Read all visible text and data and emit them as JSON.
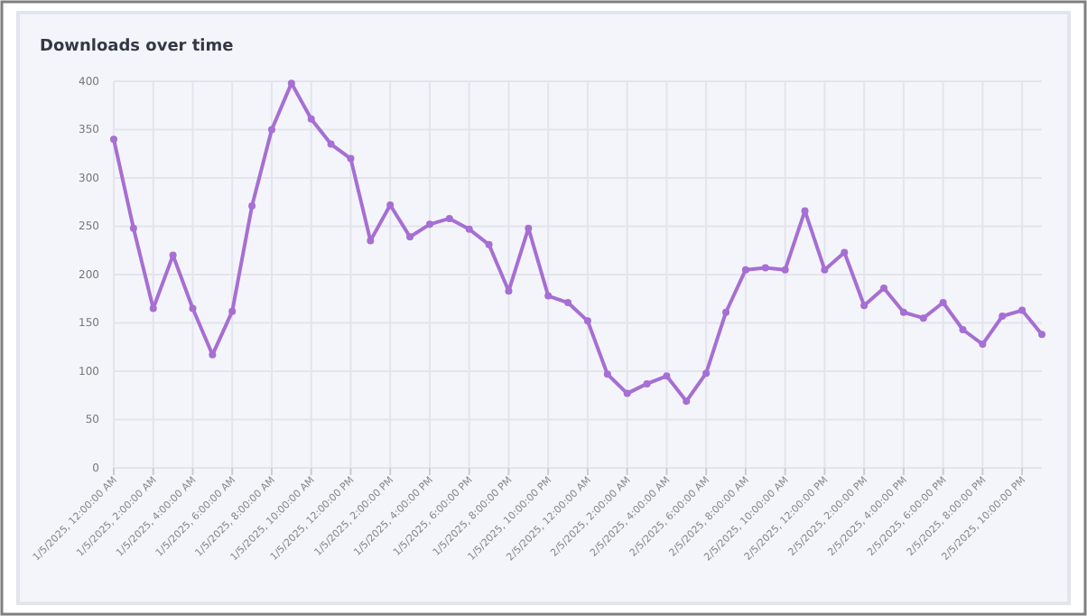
{
  "chart_data": {
    "type": "line",
    "title": "Downloads over time",
    "categories": [
      "1/5/2025, 12:00:00 AM",
      null,
      "1/5/2025, 2:00:00 AM",
      null,
      "1/5/2025, 4:00:00 AM",
      null,
      "1/5/2025, 6:00:00 AM",
      null,
      "1/5/2025, 8:00:00 AM",
      null,
      "1/5/2025, 10:00:00 AM",
      null,
      "1/5/2025, 12:00:00 PM",
      null,
      "1/5/2025, 2:00:00 PM",
      null,
      "1/5/2025, 4:00:00 PM",
      null,
      "1/5/2025, 6:00:00 PM",
      null,
      "1/5/2025, 8:00:00 PM",
      null,
      "1/5/2025, 10:00:00 PM",
      null,
      "2/5/2025, 12:00:00 AM",
      null,
      "2/5/2025, 2:00:00 AM",
      null,
      "2/5/2025, 4:00:00 AM",
      null,
      "2/5/2025, 6:00:00 AM",
      null,
      "2/5/2025, 8:00:00 AM",
      null,
      "2/5/2025, 10:00:00 AM",
      null,
      "2/5/2025, 12:00:00 PM",
      null,
      "2/5/2025, 2:00:00 PM",
      null,
      "2/5/2025, 4:00:00 PM",
      null,
      "2/5/2025, 6:00:00 PM",
      null,
      "2/5/2025, 8:00:00 PM",
      null,
      "2/5/2025, 10:00:00 PM",
      null
    ],
    "series": [
      {
        "color": "#a66fd3",
        "values": [
          340,
          248,
          165,
          220,
          165,
          117,
          162,
          271,
          350,
          398,
          361,
          335,
          320,
          235,
          272,
          239,
          252,
          258,
          247,
          231,
          183,
          248,
          178,
          171,
          152,
          97,
          77,
          87,
          95,
          69,
          98,
          161,
          205,
          207,
          205,
          266,
          205,
          223,
          168,
          186,
          161,
          155,
          171,
          143,
          128,
          157,
          163,
          138
        ]
      }
    ],
    "ylim": [
      0,
      400
    ],
    "yticks": [
      0,
      50,
      100,
      150,
      200,
      250,
      300,
      350,
      400
    ],
    "grid": true,
    "marker": "circle",
    "line_style": "solid"
  }
}
